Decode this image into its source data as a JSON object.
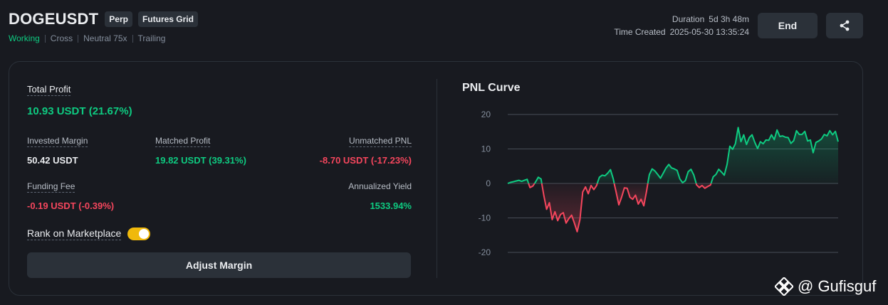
{
  "header": {
    "symbol": "DOGEUSDT",
    "tags": [
      "Perp",
      "Futures Grid"
    ],
    "status": "Working",
    "meta": [
      "Cross",
      "Neutral 75x",
      "Trailing"
    ],
    "duration_label": "Duration",
    "duration_value": "5d 3h 48m",
    "created_label": "Time Created",
    "created_value": "2025-05-30 13:35:24",
    "end_label": "End",
    "share_icon": "share-icon"
  },
  "summary": {
    "total_profit_label": "Total Profit",
    "total_profit_value": "10.93 USDT (21.67%)",
    "invested_margin_label": "Invested Margin",
    "invested_margin_value": "50.42 USDT",
    "matched_profit_label": "Matched Profit",
    "matched_profit_value": "19.82 USDT (39.31%)",
    "unmatched_pnl_label": "Unmatched PNL",
    "unmatched_pnl_value": "-8.70 USDT (-17.23%)",
    "funding_fee_label": "Funding Fee",
    "funding_fee_value": "-0.19 USDT (-0.39%)",
    "annualized_yield_label": "Annualized Yield",
    "annualized_yield_value": "1533.94%",
    "rank_label": "Rank on Marketplace",
    "rank_enabled": true,
    "adjust_margin_label": "Adjust Margin"
  },
  "colors": {
    "positive": "#0ecb81",
    "negative": "#f6465d",
    "accent": "#f0b90b"
  },
  "chart_data": {
    "type": "line",
    "title": "PNL Curve",
    "ylim": [
      -20,
      20
    ],
    "yticks": [
      20,
      10,
      0,
      -10,
      -20
    ],
    "grid": true,
    "x": [
      0,
      1,
      2,
      3,
      4,
      5,
      6,
      7,
      8,
      9,
      10,
      11,
      12,
      13,
      14,
      15,
      16,
      17,
      18,
      19,
      20,
      21,
      22,
      23,
      24,
      25,
      26,
      27,
      28,
      29,
      30,
      31,
      32,
      33,
      34,
      35,
      36,
      37,
      38,
      39,
      40,
      41,
      42,
      43,
      44,
      45,
      46,
      47,
      48,
      49,
      50,
      51,
      52,
      53,
      54,
      55,
      56,
      57,
      58,
      59,
      60,
      61,
      62,
      63,
      64,
      65,
      66,
      67,
      68,
      69,
      70,
      71,
      72,
      73,
      74,
      75,
      76,
      77,
      78,
      79,
      80,
      81,
      82,
      83,
      84,
      85,
      86,
      87,
      88,
      89,
      90,
      91,
      92,
      93,
      94,
      95,
      96,
      97,
      98,
      99,
      100,
      101,
      102,
      103,
      104,
      105,
      106,
      107,
      108,
      109,
      110,
      111,
      112,
      113,
      114,
      115,
      116,
      117,
      118,
      119
    ],
    "values": [
      0,
      0.3,
      0.5,
      0.7,
      0.9,
      0.6,
      0.9,
      1.2,
      -1.2,
      -0.8,
      0.4,
      1.8,
      1.3,
      -3.5,
      -7.5,
      -5.6,
      -10.5,
      -8.2,
      -10.8,
      -9,
      -8.5,
      -11.5,
      -10.2,
      -9.2,
      -11.5,
      -14,
      -10.5,
      -2.5,
      -1,
      -3,
      -0.6,
      -1.8,
      -0.6,
      1.8,
      2.4,
      2.2,
      3,
      4,
      1.3,
      -2.4,
      -6.2,
      -4,
      -1.3,
      -1.4,
      -4,
      -4.6,
      -3.4,
      -6,
      -4.6,
      -6.5,
      -2.2,
      2.6,
      4.2,
      3.6,
      2.6,
      1.5,
      3,
      4.5,
      5.5,
      4.5,
      4.2,
      3.8,
      1.3,
      0.2,
      0.8,
      3.4,
      4.1,
      2.5,
      -0.4,
      -1.2,
      -0.6,
      -1.4,
      -0.9,
      -0.5,
      1.9,
      2.6,
      4.1,
      3.3,
      2.4,
      5.5,
      10.8,
      9.9,
      11.5,
      16.2,
      12.1,
      14.1,
      11.3,
      13.3,
      14.1,
      11.9,
      10.1,
      12.1,
      11.5,
      12.6,
      12.5,
      14.1,
      12.7,
      15.5,
      13.6,
      13.8,
      13.4,
      13.3,
      11.6,
      12.4,
      15.3,
      14.2,
      14.2,
      15.1,
      12.3,
      12.6,
      8.9,
      11.9,
      12.3,
      12.9,
      14.2,
      13.8,
      15.3,
      14.1,
      15.1,
      12.1
    ]
  },
  "watermark": {
    "text": "@ Gufisguf"
  }
}
